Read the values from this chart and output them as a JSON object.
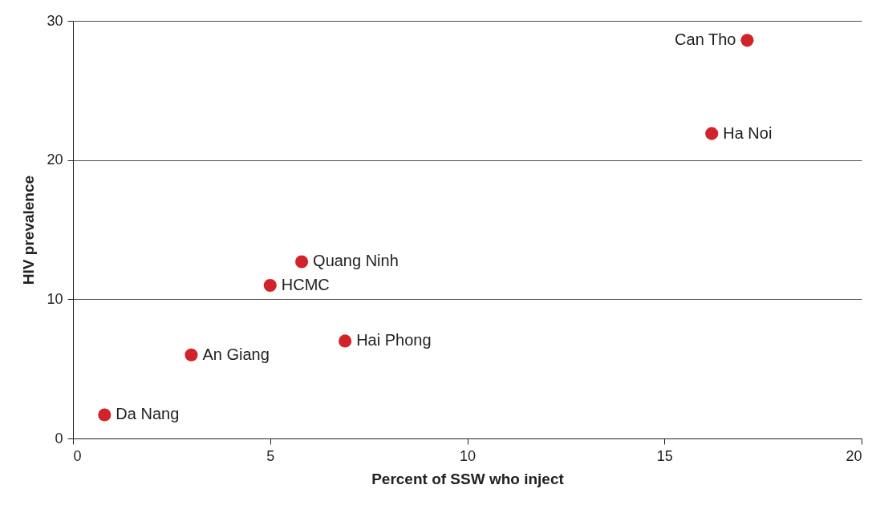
{
  "chart_data": {
    "type": "scatter",
    "xlabel": "Percent of SSW who inject",
    "ylabel": "HIV prevalence",
    "x": [
      17.1,
      16.2,
      5.8,
      5.0,
      6.9,
      3.0,
      0.8
    ],
    "values": [
      28.6,
      21.9,
      12.7,
      11.0,
      7.0,
      6.0,
      1.7
    ],
    "color": "#d2232a",
    "marker": "circle",
    "xlim": [
      0,
      20
    ],
    "xticks": [
      0,
      5,
      10,
      15,
      20
    ],
    "ylim": [
      0,
      30
    ],
    "yticks": [
      0,
      10,
      20,
      30
    ],
    "grid": "y",
    "annotations": [
      {
        "text": "Can Tho",
        "x": 17.1,
        "y": 28.6
      },
      {
        "text": "Ha Noi",
        "x": 16.2,
        "y": 21.9
      },
      {
        "text": "Quang Ninh",
        "x": 5.8,
        "y": 12.7
      },
      {
        "text": "HCMC",
        "x": 5.0,
        "y": 11.0
      },
      {
        "text": "Hai Phong",
        "x": 6.9,
        "y": 7.0
      },
      {
        "text": "An Giang",
        "x": 3.0,
        "y": 6.0
      },
      {
        "text": "Da Nang",
        "x": 0.8,
        "y": 1.7
      }
    ]
  }
}
